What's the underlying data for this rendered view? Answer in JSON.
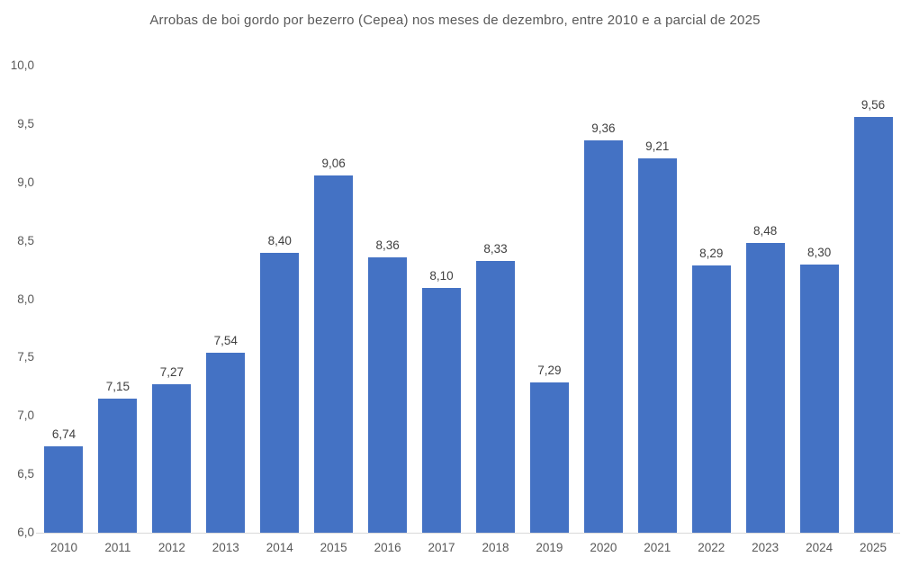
{
  "chart_data": {
    "type": "bar",
    "title": "Arrobas de boi gordo por bezerro (Cepea) nos meses de dezembro, entre 2010 e a parcial de 2025",
    "categories": [
      "2010",
      "2011",
      "2012",
      "2013",
      "2014",
      "2015",
      "2016",
      "2017",
      "2018",
      "2019",
      "2020",
      "2021",
      "2022",
      "2023",
      "2024",
      "2025"
    ],
    "values": [
      6.74,
      7.15,
      7.27,
      7.54,
      8.4,
      9.06,
      8.36,
      8.1,
      8.33,
      7.29,
      9.36,
      9.21,
      8.29,
      8.48,
      8.3,
      9.56
    ],
    "value_labels": [
      "6,74",
      "7,15",
      "7,27",
      "7,54",
      "8,40",
      "9,06",
      "8,36",
      "8,10",
      "8,33",
      "7,29",
      "9,36",
      "9,21",
      "8,29",
      "8,48",
      "8,30",
      "9,56"
    ],
    "xlabel": "",
    "ylabel": "",
    "ylim": [
      6.0,
      10.0
    ],
    "ytick_values": [
      10.0,
      9.5,
      9.0,
      8.5,
      8.0,
      7.5,
      7.0,
      6.5,
      6.0
    ],
    "ytick_labels": [
      "10,0",
      "9,5",
      "9,0",
      "8,5",
      "8,0",
      "7,5",
      "7,0",
      "6,5",
      "6,0"
    ],
    "decimal_separator": ",",
    "grid": false,
    "legend_position": "none",
    "colors": {
      "bar_fill": "#4472C4",
      "title_text": "#595959",
      "axis_tick_text": "#595959",
      "data_label_text": "#404040",
      "axis_line": "#D9D9D9",
      "background": "#FFFFFF"
    }
  }
}
